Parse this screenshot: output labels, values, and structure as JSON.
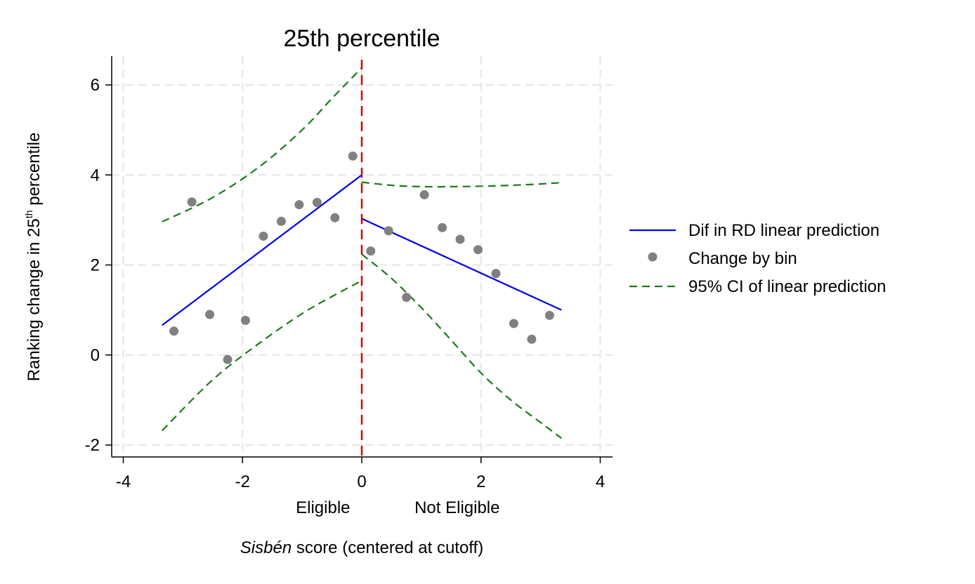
{
  "chart_data": {
    "type": "scatter",
    "title": "25th percentile",
    "xlabel_italic": "Sisbén",
    "xlabel_rest": " score (centered at cutoff)",
    "ylabel_pre": "Ranking change in 25",
    "ylabel_sup": "th",
    "ylabel_post": " percentile",
    "xlim": [
      -4.2,
      4.2
    ],
    "ylim": [
      -2.25,
      6.6
    ],
    "x_ticks": [
      -4,
      -2,
      0,
      2,
      4
    ],
    "x_tick_labels": [
      "-4",
      "-2",
      "0",
      "2",
      "4"
    ],
    "y_ticks": [
      -2,
      0,
      2,
      4,
      6
    ],
    "y_tick_labels": [
      "-2",
      "0",
      "2",
      "4",
      "6"
    ],
    "grid": true,
    "cutoff_x": 0,
    "region_labels": [
      {
        "text": "Eligible",
        "x": -0.65
      },
      {
        "text": "Not Eligible",
        "x": 1.6
      }
    ],
    "legend_position": "right",
    "legend": [
      {
        "label": "Dif in RD linear prediction",
        "kind": "line",
        "color": "#0000ee"
      },
      {
        "label": "Change by bin",
        "kind": "marker",
        "color": "#808080"
      },
      {
        "label": "95% CI of linear prediction",
        "kind": "dashed",
        "color": "#1a7a1a"
      }
    ],
    "bins": {
      "x": [
        -3.15,
        -2.85,
        -2.55,
        -2.25,
        -1.95,
        -1.65,
        -1.35,
        -1.05,
        -0.75,
        -0.45,
        -0.15,
        0.15,
        0.45,
        0.75,
        1.05,
        1.35,
        1.65,
        1.95,
        2.25,
        2.55,
        2.85,
        3.15
      ],
      "y": [
        0.53,
        3.4,
        0.9,
        -0.1,
        0.77,
        2.64,
        2.97,
        3.34,
        3.39,
        3.05,
        4.42,
        2.31,
        2.76,
        1.28,
        3.56,
        2.83,
        2.57,
        2.34,
        1.81,
        0.7,
        0.35,
        0.88
      ]
    },
    "fit_left": {
      "x": [
        -3.35,
        0
      ],
      "y": [
        0.66,
        4.0
      ]
    },
    "fit_right": {
      "x": [
        0,
        3.35
      ],
      "y": [
        3.03,
        1.0
      ]
    },
    "ci_left_upper": {
      "x": [
        -3.35,
        -2.5,
        -1.7,
        -1.0,
        -0.5,
        0
      ],
      "y": [
        2.96,
        3.5,
        4.2,
        5.0,
        5.7,
        6.38
      ]
    },
    "ci_left_lower": {
      "x": [
        -3.35,
        -2.5,
        -1.7,
        -1.0,
        -0.5,
        0
      ],
      "y": [
        -1.68,
        -0.55,
        0.28,
        0.92,
        1.3,
        1.65
      ]
    },
    "ci_right_upper": {
      "x": [
        0,
        0.5,
        1.0,
        1.5,
        2.0,
        2.5,
        3.0,
        3.35
      ],
      "y": [
        3.84,
        3.77,
        3.74,
        3.74,
        3.75,
        3.77,
        3.8,
        3.83
      ]
    },
    "ci_right_lower": {
      "x": [
        0,
        0.5,
        1.0,
        1.5,
        2.0,
        2.5,
        3.0,
        3.35
      ],
      "y": [
        2.24,
        1.7,
        1.05,
        0.33,
        -0.4,
        -1.0,
        -1.5,
        -1.85
      ]
    },
    "colors": {
      "fit": "#0000ee",
      "ci": "#1a7a1a",
      "points": "#808080",
      "cutoff": "#e00000",
      "grid": "#e6e6e6"
    }
  }
}
